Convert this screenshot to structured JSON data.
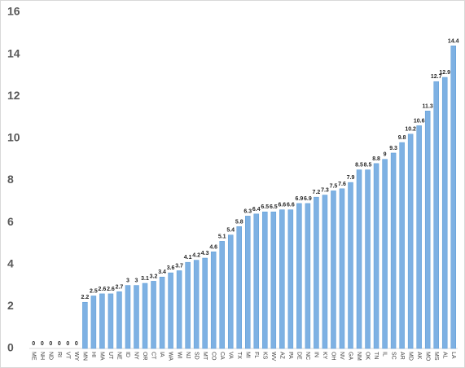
{
  "chart_data": {
    "type": "bar",
    "categories": [
      "ME",
      "NH",
      "ND",
      "RI",
      "VT",
      "WY",
      "MN",
      "HI",
      "MA",
      "UT",
      "NE",
      "ID",
      "NY",
      "OR",
      "CT",
      "IA",
      "WA",
      "WI",
      "NJ",
      "SD",
      "MT",
      "CO",
      "CA",
      "VA",
      "TX",
      "MI",
      "FL",
      "KS",
      "WV",
      "AZ",
      "PA",
      "DE",
      "NC",
      "IN",
      "KY",
      "OH",
      "NV",
      "GA",
      "NM",
      "OK",
      "TN",
      "IL",
      "SC",
      "AR",
      "MD",
      "AK",
      "MO",
      "MS",
      "AL",
      "LA"
    ],
    "values": [
      0,
      0,
      0,
      0,
      0,
      0,
      2.2,
      2.5,
      2.6,
      2.6,
      2.7,
      3,
      3,
      3.1,
      3.2,
      3.4,
      3.6,
      3.7,
      4.1,
      4.2,
      4.3,
      4.6,
      5.1,
      5.4,
      5.8,
      6.3,
      6.4,
      6.5,
      6.5,
      6.6,
      6.6,
      6.9,
      6.9,
      7.2,
      7.3,
      7.5,
      7.6,
      7.9,
      8.5,
      8.5,
      8.8,
      9,
      9.3,
      9.8,
      10.2,
      10.6,
      11.3,
      12.7,
      12.9,
      14.4
    ],
    "color": "#7eb1e3",
    "ylim": [
      0,
      16
    ],
    "yticks": [
      0,
      2,
      4,
      6,
      8,
      10,
      12,
      14,
      16
    ],
    "grid": false
  }
}
